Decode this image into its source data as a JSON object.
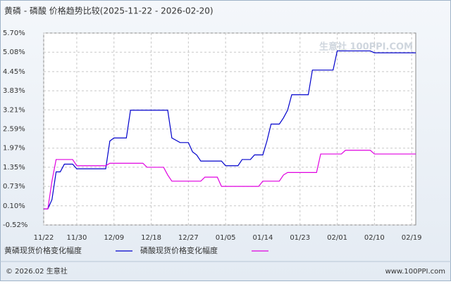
{
  "chart_data": {
    "type": "line",
    "title": "黄磷 - 磷酸 价格趋势比较(2025-11-22 - 2026-02-20)",
    "watermark": "生意社 100PPI.COM",
    "footer_left": "© 2026.02 生意社",
    "footer_right": "www.100PPI.com",
    "x": [
      "11/22",
      "11/23",
      "11/24",
      "11/25",
      "11/26",
      "11/27",
      "11/29",
      "11/30",
      "12/07",
      "12/08",
      "12/09",
      "12/12",
      "12/13",
      "12/16",
      "12/17",
      "12/21",
      "12/22",
      "12/23",
      "12/25",
      "12/27",
      "12/28",
      "12/29",
      "12/30",
      "12/31",
      "01/03",
      "01/04",
      "01/05",
      "01/08",
      "01/09",
      "01/11",
      "01/12",
      "01/13",
      "01/14",
      "01/15",
      "01/16",
      "01/18",
      "01/19",
      "01/20",
      "01/21",
      "01/25",
      "01/26",
      "01/27",
      "01/28",
      "01/31",
      "02/01",
      "02/02",
      "02/03",
      "02/09",
      "02/10",
      "02/20"
    ],
    "xlim": [
      "11/22",
      "02/20"
    ],
    "xticks": [
      "11/22",
      "11/30",
      "12/09",
      "12/18",
      "12/27",
      "01/05",
      "01/14",
      "01/23",
      "02/01",
      "02/10",
      "02/19"
    ],
    "ylim": [
      -0.52,
      5.7
    ],
    "yticks": [
      {
        "value": 5.7,
        "label": "5.70%"
      },
      {
        "value": 5.08,
        "label": "5.08%"
      },
      {
        "value": 4.45,
        "label": "4.45%"
      },
      {
        "value": 3.83,
        "label": "3.83%"
      },
      {
        "value": 3.21,
        "label": "3.21%"
      },
      {
        "value": 2.59,
        "label": "2.59%"
      },
      {
        "value": 1.97,
        "label": "1.97%"
      },
      {
        "value": 1.35,
        "label": "1.35%"
      },
      {
        "value": 0.73,
        "label": "0.73%"
      },
      {
        "value": 0.1,
        "label": "0.10%"
      },
      {
        "value": -0.52,
        "label": "-0.52%"
      }
    ],
    "grid": true,
    "series": [
      {
        "name": "黄磷现货价格变化幅度",
        "color": "#0000cc",
        "values": [
          0,
          0,
          0.3,
          1.2,
          1.2,
          1.45,
          1.45,
          1.3,
          1.3,
          2.2,
          2.3,
          2.3,
          3.2,
          3.2,
          3.2,
          3.2,
          3.2,
          2.3,
          2.15,
          2.15,
          1.85,
          1.75,
          1.55,
          1.55,
          1.55,
          1.55,
          1.4,
          1.4,
          1.6,
          1.6,
          1.75,
          1.75,
          1.75,
          2.2,
          2.75,
          2.75,
          2.95,
          3.2,
          3.7,
          3.7,
          4.5,
          4.5,
          4.5,
          4.5,
          5.12,
          5.12,
          5.12,
          5.12,
          5.06,
          5.06
        ]
      },
      {
        "name": "磷酸现货价格变化幅度",
        "color": "#e000e0",
        "values": [
          0,
          0,
          0.9,
          1.6,
          1.6,
          1.6,
          1.6,
          1.4,
          1.4,
          1.48,
          1.48,
          1.48,
          1.48,
          1.48,
          1.35,
          1.35,
          1.1,
          0.9,
          0.9,
          0.9,
          0.9,
          0.9,
          0.9,
          1.03,
          1.03,
          0.73,
          0.73,
          0.73,
          0.73,
          0.73,
          0.73,
          0.73,
          0.9,
          0.9,
          0.9,
          0.9,
          1.1,
          1.18,
          1.18,
          1.18,
          1.18,
          1.18,
          1.78,
          1.78,
          1.78,
          1.78,
          1.9,
          1.9,
          1.78,
          1.78
        ]
      }
    ]
  }
}
